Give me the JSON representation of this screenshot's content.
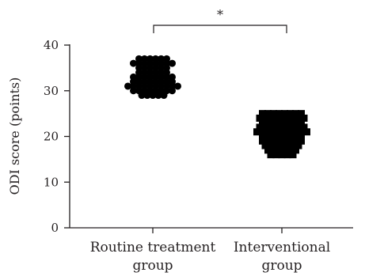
{
  "chart_data": {
    "type": "scatter",
    "ylabel": "ODI score (points)",
    "ylim": [
      0,
      40
    ],
    "yticks": [
      "0",
      "10",
      "20",
      "30",
      "40"
    ],
    "categories": [
      {
        "line1": "Routine treatment",
        "line2": "group"
      },
      {
        "line1": "Interventional",
        "line2": "group"
      }
    ],
    "significance": {
      "label": "*",
      "between": [
        0,
        1
      ]
    },
    "series": [
      {
        "marker": "circle",
        "color": "#000000",
        "values": [
          37,
          37,
          37,
          37,
          37,
          37,
          36,
          36,
          36,
          36,
          36,
          36,
          36,
          36,
          35,
          35,
          35,
          35,
          35,
          35,
          34,
          34,
          34,
          34,
          34,
          34,
          33,
          33,
          33,
          33,
          33,
          33,
          33,
          33,
          32,
          32,
          32,
          32,
          32,
          32,
          32,
          32,
          31,
          31,
          31,
          31,
          31,
          31,
          31,
          31,
          31,
          31,
          30,
          30,
          30,
          30,
          30,
          30,
          30,
          30,
          29,
          29,
          29,
          29,
          29
        ]
      },
      {
        "marker": "square",
        "color": "#000000",
        "values": [
          25,
          25,
          25,
          25,
          25,
          25,
          25,
          25,
          24,
          24,
          24,
          24,
          24,
          24,
          24,
          24,
          24,
          23,
          23,
          23,
          23,
          23,
          23,
          23,
          23,
          22,
          22,
          22,
          22,
          22,
          22,
          22,
          22,
          22,
          21,
          21,
          21,
          21,
          21,
          21,
          21,
          21,
          21,
          21,
          20,
          20,
          20,
          20,
          20,
          20,
          20,
          20,
          19,
          19,
          19,
          19,
          19,
          19,
          19,
          19,
          18,
          18,
          18,
          18,
          18,
          18,
          18,
          17,
          17,
          17,
          17,
          17,
          17,
          16,
          16,
          16,
          16,
          16
        ]
      }
    ],
    "grid": false,
    "legend": "none"
  }
}
